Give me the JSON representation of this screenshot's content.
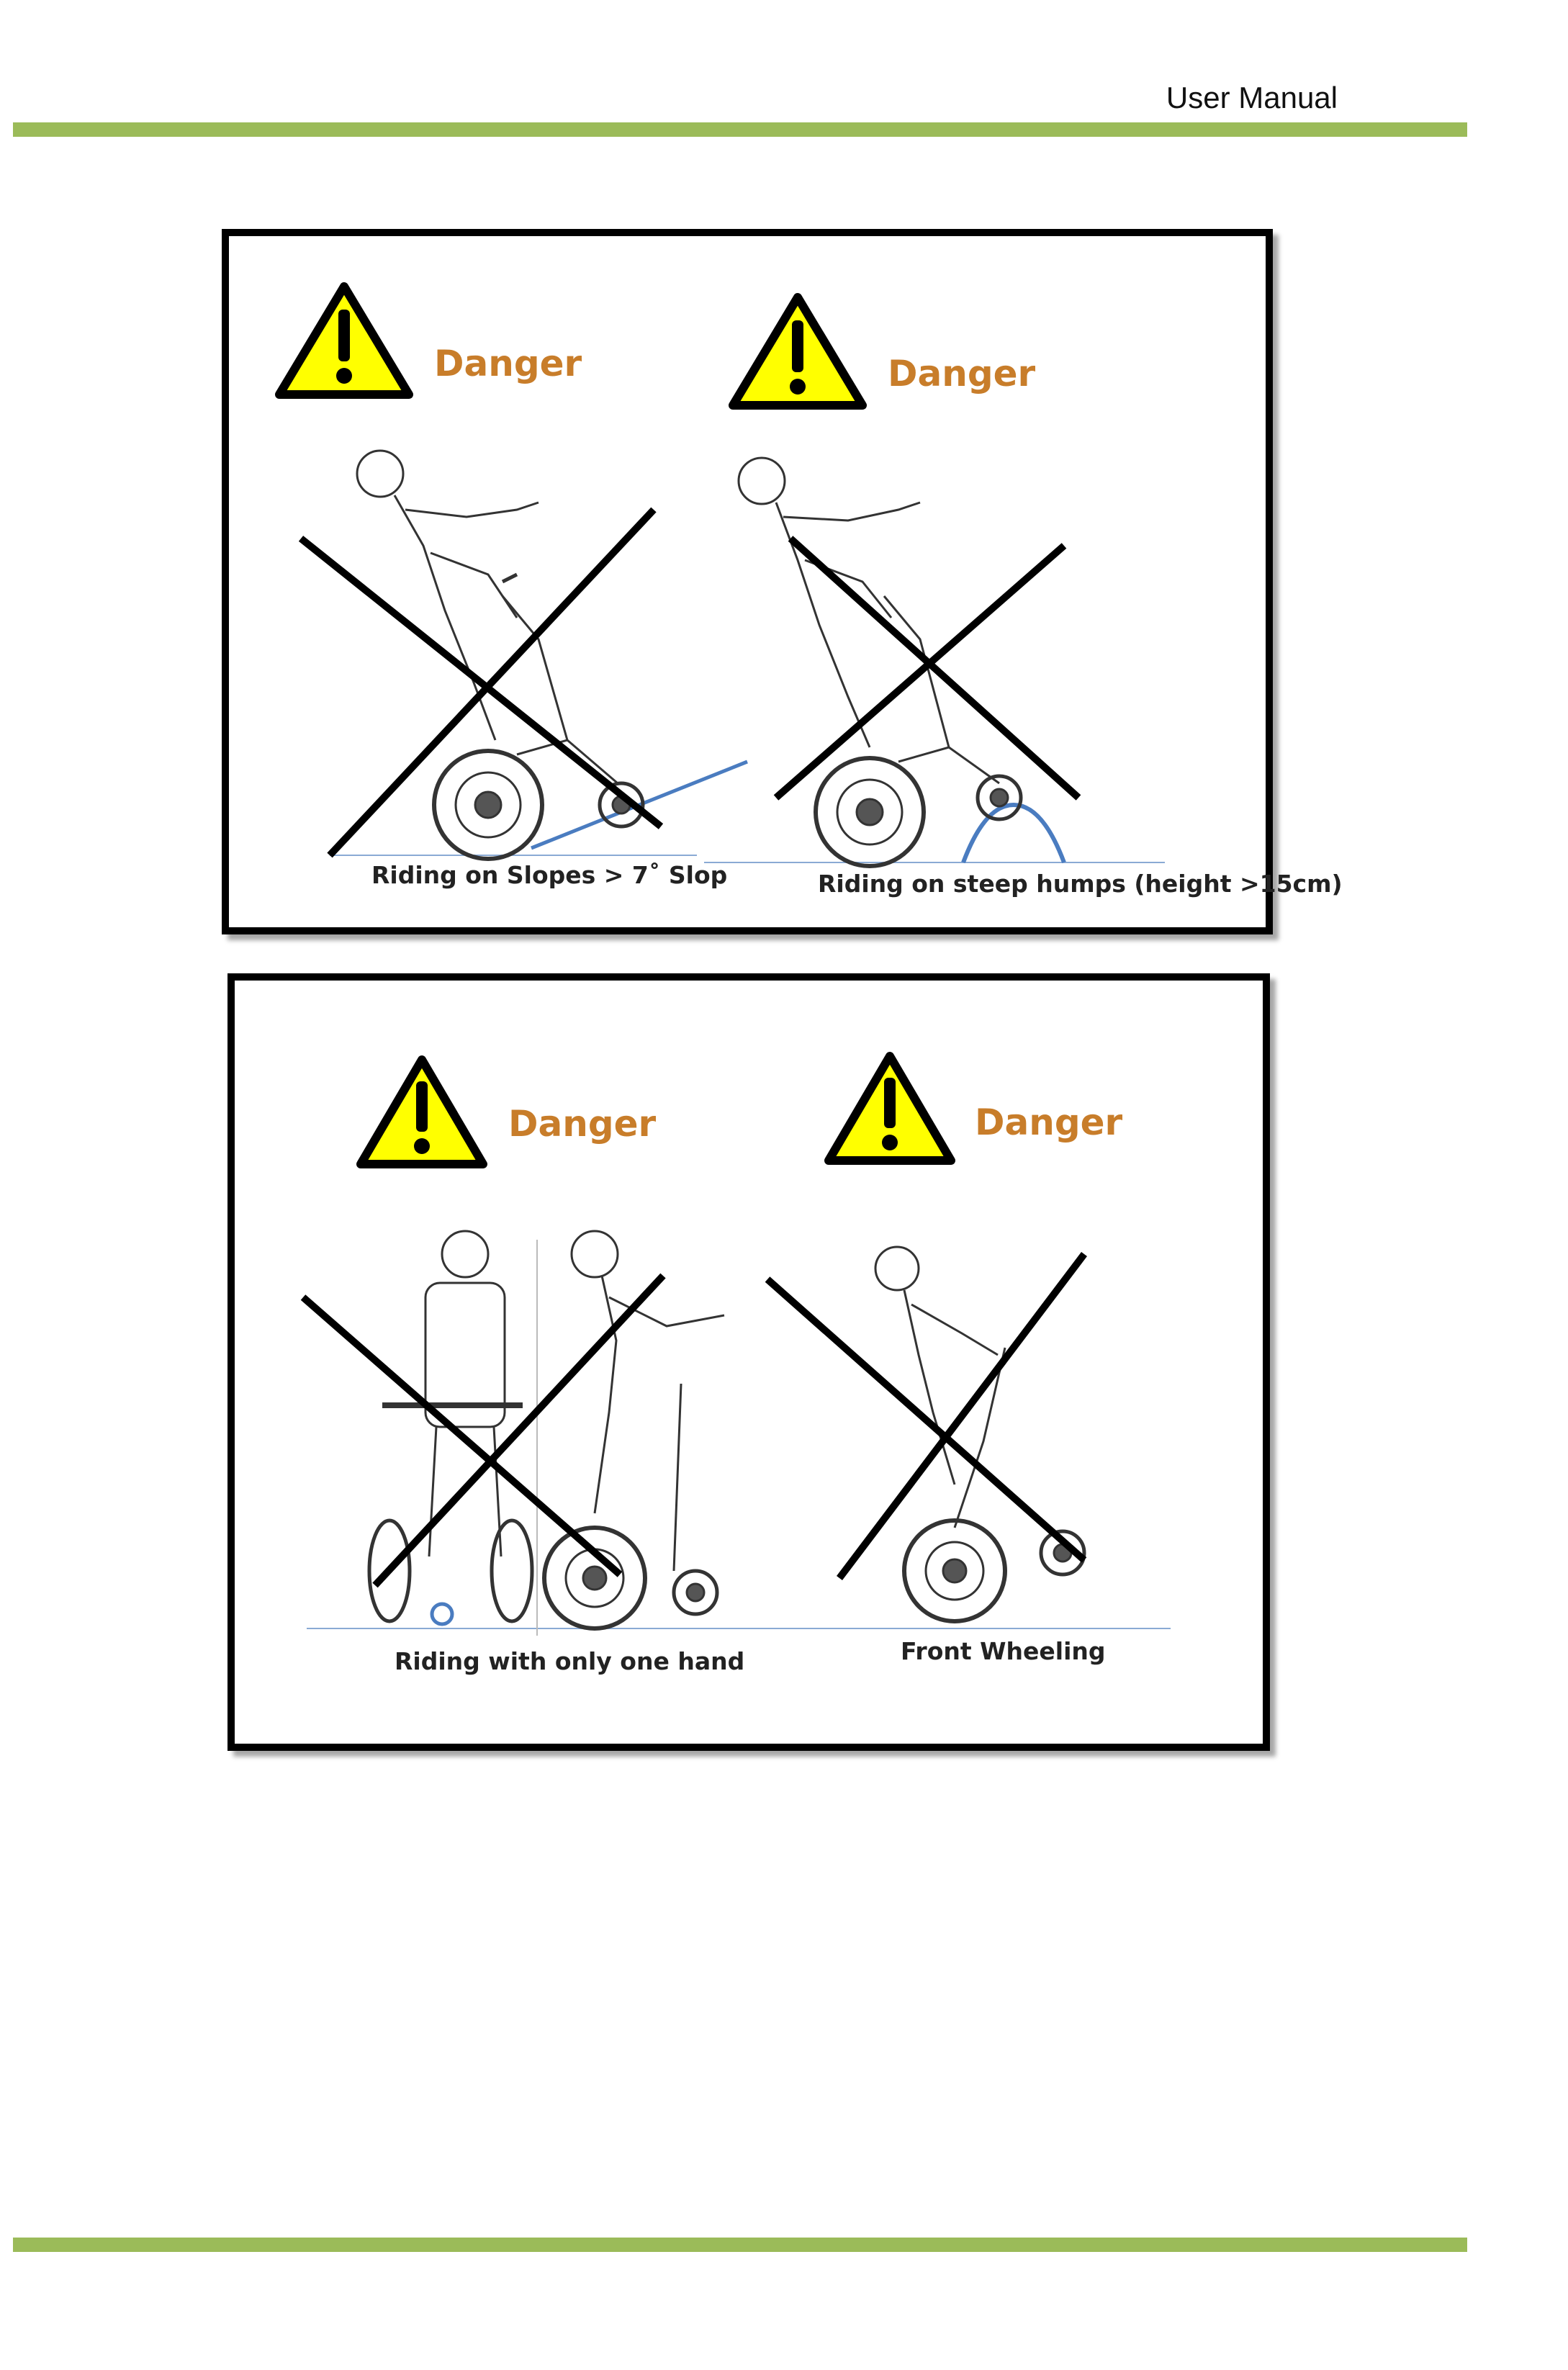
{
  "header": {
    "title": "User Manual"
  },
  "colors": {
    "accent_rule": "#9bbb59",
    "danger_text": "#c87d2a",
    "warning_yellow": "#ffff00"
  },
  "panels": [
    {
      "warnings": [
        {
          "label": "Danger",
          "icon": "warning-triangle-icon"
        },
        {
          "label": "Danger",
          "icon": "warning-triangle-icon"
        }
      ],
      "captions": [
        "Riding on Slopes > 7˚ Slop",
        "Riding on  steep humps (height >15cm)"
      ]
    },
    {
      "warnings": [
        {
          "label": "Danger",
          "icon": "warning-triangle-icon"
        },
        {
          "label": "Danger",
          "icon": "warning-triangle-icon"
        }
      ],
      "captions": [
        "Riding  with only one hand",
        "Front Wheeling"
      ]
    }
  ]
}
